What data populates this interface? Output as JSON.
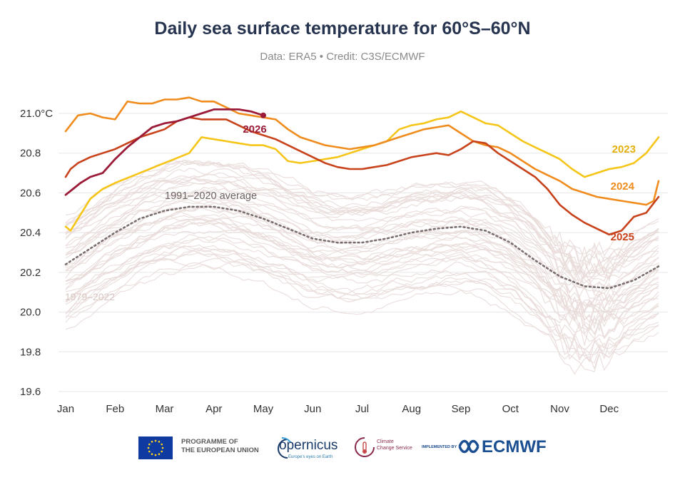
{
  "header": {
    "title": "Daily sea surface temperature for 60°S–60°N",
    "subtitle": "Data: ERA5 • Credit: C3S/ECMWF"
  },
  "colors": {
    "history": "#e8dbd8",
    "average": "#7a6e6e",
    "y2023": "#f5c518",
    "y2024": "#f08c1e",
    "y2025": "#c8421c",
    "y2026": "#9b1b38",
    "grid": "#e6e6e6",
    "axis_text": "#333333"
  },
  "chart_data": {
    "type": "line",
    "title": "Daily sea surface temperature for 60°S–60°N",
    "subtitle": "Data: ERA5 • Credit: C3S/ECMWF",
    "ylabel": "",
    "xlabel": "",
    "x_unit": "month",
    "x_range": [
      0,
      12
    ],
    "ylim": [
      19.6,
      21.1
    ],
    "y_ticks": [
      19.6,
      19.8,
      20.0,
      20.2,
      20.4,
      20.6,
      20.8,
      21.0
    ],
    "y_tick_labels": [
      "19.6",
      "19.8",
      "20.0",
      "20.2",
      "20.4",
      "20.6",
      "20.8",
      "21.0°C"
    ],
    "x_tick_labels": [
      "Jan",
      "Feb",
      "Mar",
      "Apr",
      "May",
      "Jun",
      "Jul",
      "Aug",
      "Sep",
      "Oct",
      "Nov",
      "Dec"
    ],
    "grid": true,
    "annotations": {
      "average_label": "1991–2020 average",
      "history_label": "1979–2022",
      "label_2023": "2023",
      "label_2024": "2024",
      "label_2025": "2025",
      "label_2026": "2026"
    },
    "series": [
      {
        "name": "1991–2020 average",
        "style": "dotted",
        "x": [
          0,
          0.5,
          1,
          1.5,
          2,
          2.5,
          3,
          3.5,
          4,
          4.5,
          5,
          5.5,
          6,
          6.5,
          7,
          7.5,
          8,
          8.5,
          9,
          9.5,
          10,
          10.5,
          11,
          11.5,
          12
        ],
        "y": [
          20.24,
          20.32,
          20.4,
          20.47,
          20.51,
          20.53,
          20.53,
          20.51,
          20.47,
          20.42,
          20.37,
          20.35,
          20.35,
          20.37,
          20.4,
          20.42,
          20.43,
          20.41,
          20.35,
          20.26,
          20.18,
          20.13,
          20.12,
          20.16,
          20.23
        ]
      },
      {
        "name": "2023",
        "x": [
          0,
          0.1,
          0.25,
          0.5,
          0.75,
          1,
          1.5,
          2,
          2.5,
          2.75,
          3,
          3.25,
          3.5,
          3.75,
          4,
          4.25,
          4.5,
          4.75,
          5,
          5.5,
          6,
          6.25,
          6.5,
          6.75,
          7,
          7.25,
          7.5,
          7.75,
          8,
          8.25,
          8.5,
          8.75,
          9,
          9.25,
          9.5,
          9.75,
          10,
          10.25,
          10.5,
          10.75,
          11,
          11.25,
          11.5,
          11.75,
          12
        ],
        "y": [
          20.43,
          20.41,
          20.47,
          20.57,
          20.62,
          20.65,
          20.7,
          20.75,
          20.8,
          20.88,
          20.87,
          20.86,
          20.85,
          20.84,
          20.84,
          20.82,
          20.76,
          20.75,
          20.76,
          20.78,
          20.82,
          20.84,
          20.86,
          20.92,
          20.94,
          20.95,
          20.97,
          20.98,
          21.01,
          20.98,
          20.95,
          20.94,
          20.9,
          20.86,
          20.83,
          20.8,
          20.77,
          20.72,
          20.68,
          20.7,
          20.72,
          20.73,
          20.75,
          20.8,
          20.88
        ]
      },
      {
        "name": "2024",
        "x": [
          0,
          0.25,
          0.5,
          0.75,
          1,
          1.25,
          1.5,
          1.75,
          2,
          2.25,
          2.5,
          2.75,
          3,
          3.25,
          3.5,
          3.75,
          4,
          4.25,
          4.5,
          4.75,
          5,
          5.25,
          5.5,
          5.75,
          6,
          6.25,
          6.5,
          6.75,
          7,
          7.25,
          7.5,
          7.75,
          8,
          8.25,
          8.5,
          8.75,
          9,
          9.25,
          9.5,
          9.75,
          10,
          10.25,
          10.5,
          10.75,
          11,
          11.25,
          11.5,
          11.75,
          11.9,
          12
        ],
        "y": [
          20.91,
          20.99,
          21.0,
          20.98,
          20.97,
          21.06,
          21.05,
          21.05,
          21.07,
          21.07,
          21.08,
          21.06,
          21.06,
          21.03,
          21.0,
          20.99,
          20.98,
          20.97,
          20.92,
          20.88,
          20.86,
          20.84,
          20.83,
          20.82,
          20.83,
          20.84,
          20.86,
          20.88,
          20.9,
          20.92,
          20.93,
          20.94,
          20.9,
          20.86,
          20.84,
          20.83,
          20.8,
          20.76,
          20.72,
          20.69,
          20.66,
          20.62,
          20.6,
          20.58,
          20.57,
          20.56,
          20.55,
          20.54,
          20.56,
          20.66
        ]
      },
      {
        "name": "2025",
        "x": [
          0,
          0.1,
          0.25,
          0.5,
          0.75,
          1,
          1.25,
          1.5,
          1.75,
          2,
          2.25,
          2.5,
          2.75,
          3,
          3.25,
          3.5,
          3.75,
          4,
          4.25,
          4.5,
          4.75,
          5,
          5.25,
          5.5,
          5.75,
          6,
          6.25,
          6.5,
          6.75,
          7,
          7.25,
          7.5,
          7.75,
          8,
          8.25,
          8.5,
          8.75,
          9,
          9.25,
          9.5,
          9.75,
          10,
          10.25,
          10.5,
          10.75,
          11,
          11.25,
          11.5,
          11.75,
          12
        ],
        "y": [
          20.68,
          20.72,
          20.75,
          20.78,
          20.8,
          20.82,
          20.85,
          20.88,
          20.9,
          20.92,
          20.96,
          20.98,
          20.97,
          20.97,
          20.97,
          20.94,
          20.91,
          20.89,
          20.87,
          20.84,
          20.81,
          20.78,
          20.75,
          20.73,
          20.72,
          20.72,
          20.73,
          20.74,
          20.76,
          20.78,
          20.79,
          20.8,
          20.79,
          20.82,
          20.86,
          20.85,
          20.8,
          20.76,
          20.72,
          20.68,
          20.62,
          20.54,
          20.49,
          20.45,
          20.42,
          20.39,
          20.41,
          20.48,
          20.5,
          20.58
        ]
      },
      {
        "name": "2026",
        "x": [
          0,
          0.15,
          0.3,
          0.5,
          0.75,
          1,
          1.25,
          1.5,
          1.75,
          2,
          2.25,
          2.5,
          2.75,
          3,
          3.25,
          3.5,
          3.75,
          4
        ],
        "y": [
          20.59,
          20.62,
          20.65,
          20.68,
          20.7,
          20.77,
          20.83,
          20.88,
          20.93,
          20.95,
          20.96,
          20.98,
          21.0,
          21.02,
          21.02,
          21.02,
          21.01,
          20.99
        ]
      }
    ]
  },
  "footer": {
    "eu_line1": "PROGRAMME OF",
    "eu_line2": "THE EUROPEAN UNION",
    "copernicus": "opernicus",
    "copernicus_tag": "Europe's eyes on Earth",
    "c3s_line1": "Climate",
    "c3s_line2": "Change Service",
    "implemented_by": "IMPLEMENTED BY",
    "ecmwf": "ECMWF"
  }
}
